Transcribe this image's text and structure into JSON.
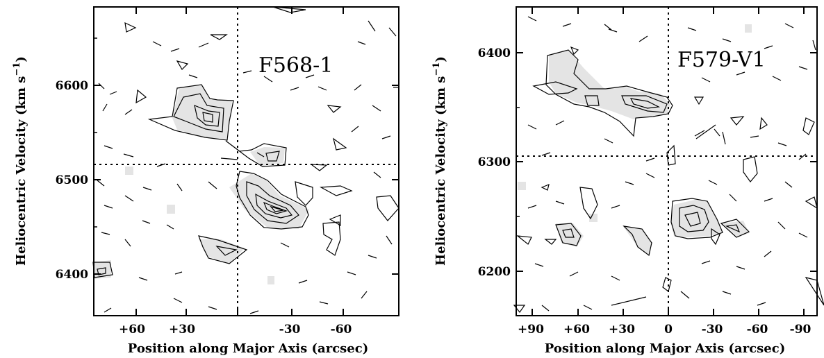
{
  "chart_data": [
    {
      "type": "contour",
      "label": "F568-1",
      "xlabel": "Position along Major Axis (arcsec)",
      "ylabel": "Heliocentric Velocity (km s^-1)",
      "xlim": [
        75,
        -75
      ],
      "ylim": [
        6360,
        6685
      ],
      "x_ticks": [
        60,
        30,
        0,
        -30,
        -60
      ],
      "x_tick_labels": [
        "+60",
        "+30",
        "",
        "-30",
        "-60"
      ],
      "y_ticks": [
        6400,
        6500,
        6600
      ],
      "y_tick_labels": [
        "6400",
        "6500",
        "6600"
      ],
      "systemic_velocity": 6517,
      "center_position": -3,
      "features": [
        {
          "x": 22,
          "y": 6572,
          "peak_levels": 4
        },
        {
          "x": -17,
          "y": 6468,
          "peak_levels": 5
        },
        {
          "x": 5,
          "y": 6425,
          "peak_levels": 2
        },
        {
          "x": -8,
          "y": 6520,
          "peak_levels": 1
        }
      ]
    },
    {
      "type": "contour",
      "label": "F579-V1",
      "xlabel": "Position along Major Axis (arcsec)",
      "ylabel": "Heliocentric Velocity (km s^-1)",
      "xlim": [
        100,
        -100
      ],
      "ylim": [
        6165,
        6435
      ],
      "x_ticks": [
        90,
        60,
        30,
        0,
        -30,
        -60,
        -90
      ],
      "x_tick_labels": [
        "+90",
        "+60",
        "+30",
        "0",
        "-30",
        "-60",
        "-90"
      ],
      "y_ticks": [
        6200,
        6300,
        6400
      ],
      "y_tick_labels": [
        "6200",
        "6300",
        "6400"
      ],
      "systemic_velocity": 6305,
      "center_position": 0,
      "features": [
        {
          "x": 15,
          "y": 6353,
          "peak_levels": 3
        },
        {
          "x": -20,
          "y": 6250,
          "peak_levels": 3
        },
        {
          "x": -58,
          "y": 6237,
          "peak_levels": 2
        },
        {
          "x": 75,
          "y": 6238,
          "peak_levels": 2
        }
      ]
    }
  ]
}
